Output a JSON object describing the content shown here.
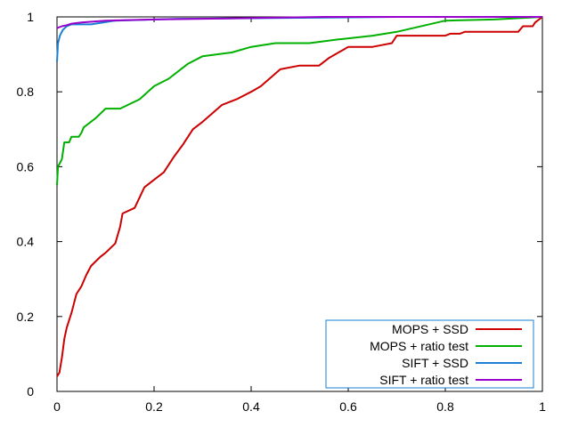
{
  "chart_data": {
    "type": "line",
    "title": "",
    "xlabel": "",
    "ylabel": "",
    "xlim": [
      0,
      1
    ],
    "ylim": [
      0,
      1
    ],
    "grid": false,
    "legend_position": "bottom-right",
    "x_ticks": [
      "0",
      "0.2",
      "0.4",
      "0.6",
      "0.8",
      "1"
    ],
    "y_ticks": [
      "0",
      "0.2",
      "0.4",
      "0.6",
      "0.8",
      "1"
    ],
    "series": [
      {
        "name": "MOPS + SSD",
        "color": "#cc0000",
        "points": [
          [
            0,
            0.04
          ],
          [
            0.005,
            0.05
          ],
          [
            0.01,
            0.09
          ],
          [
            0.015,
            0.14
          ],
          [
            0.02,
            0.17
          ],
          [
            0.03,
            0.21
          ],
          [
            0.04,
            0.26
          ],
          [
            0.05,
            0.28
          ],
          [
            0.06,
            0.31
          ],
          [
            0.07,
            0.335
          ],
          [
            0.09,
            0.36
          ],
          [
            0.1,
            0.37
          ],
          [
            0.12,
            0.395
          ],
          [
            0.13,
            0.44
          ],
          [
            0.135,
            0.475
          ],
          [
            0.16,
            0.49
          ],
          [
            0.18,
            0.545
          ],
          [
            0.2,
            0.565
          ],
          [
            0.22,
            0.585
          ],
          [
            0.24,
            0.625
          ],
          [
            0.26,
            0.66
          ],
          [
            0.28,
            0.7
          ],
          [
            0.3,
            0.72
          ],
          [
            0.34,
            0.765
          ],
          [
            0.37,
            0.78
          ],
          [
            0.4,
            0.8
          ],
          [
            0.42,
            0.815
          ],
          [
            0.46,
            0.86
          ],
          [
            0.5,
            0.87
          ],
          [
            0.54,
            0.87
          ],
          [
            0.56,
            0.89
          ],
          [
            0.6,
            0.92
          ],
          [
            0.65,
            0.92
          ],
          [
            0.69,
            0.93
          ],
          [
            0.7,
            0.95
          ],
          [
            0.8,
            0.95
          ],
          [
            0.81,
            0.955
          ],
          [
            0.83,
            0.955
          ],
          [
            0.84,
            0.96
          ],
          [
            0.95,
            0.96
          ],
          [
            0.96,
            0.975
          ],
          [
            0.98,
            0.975
          ],
          [
            0.985,
            0.985
          ],
          [
            0.99,
            0.99
          ],
          [
            1,
            1
          ]
        ]
      },
      {
        "name": "MOPS + ratio test",
        "color": "#00b000",
        "points": [
          [
            0,
            0.55
          ],
          [
            0.002,
            0.6
          ],
          [
            0.01,
            0.62
          ],
          [
            0.015,
            0.665
          ],
          [
            0.025,
            0.665
          ],
          [
            0.03,
            0.68
          ],
          [
            0.045,
            0.68
          ],
          [
            0.05,
            0.69
          ],
          [
            0.055,
            0.705
          ],
          [
            0.065,
            0.715
          ],
          [
            0.08,
            0.73
          ],
          [
            0.1,
            0.755
          ],
          [
            0.13,
            0.755
          ],
          [
            0.17,
            0.78
          ],
          [
            0.2,
            0.815
          ],
          [
            0.23,
            0.835
          ],
          [
            0.27,
            0.875
          ],
          [
            0.3,
            0.895
          ],
          [
            0.36,
            0.905
          ],
          [
            0.4,
            0.92
          ],
          [
            0.45,
            0.93
          ],
          [
            0.52,
            0.93
          ],
          [
            0.58,
            0.94
          ],
          [
            0.65,
            0.95
          ],
          [
            0.7,
            0.96
          ],
          [
            0.8,
            0.99
          ],
          [
            0.9,
            0.993
          ],
          [
            1,
            1
          ]
        ]
      },
      {
        "name": "SIFT + SSD",
        "color": "#1a7fd4",
        "points": [
          [
            0,
            0.88
          ],
          [
            0.002,
            0.93
          ],
          [
            0.006,
            0.95
          ],
          [
            0.012,
            0.965
          ],
          [
            0.02,
            0.975
          ],
          [
            0.03,
            0.98
          ],
          [
            0.07,
            0.98
          ],
          [
            0.12,
            0.99
          ],
          [
            0.25,
            0.995
          ],
          [
            0.45,
            0.997
          ],
          [
            0.7,
            1
          ],
          [
            1,
            1
          ]
        ]
      },
      {
        "name": "SIFT + ratio test",
        "color": "#9a00cc",
        "points": [
          [
            0,
            0.97
          ],
          [
            0.01,
            0.975
          ],
          [
            0.02,
            0.978
          ],
          [
            0.03,
            0.982
          ],
          [
            0.05,
            0.985
          ],
          [
            0.1,
            0.99
          ],
          [
            0.2,
            0.993
          ],
          [
            0.4,
            0.997
          ],
          [
            0.55,
            1
          ],
          [
            1,
            1
          ]
        ]
      }
    ]
  }
}
